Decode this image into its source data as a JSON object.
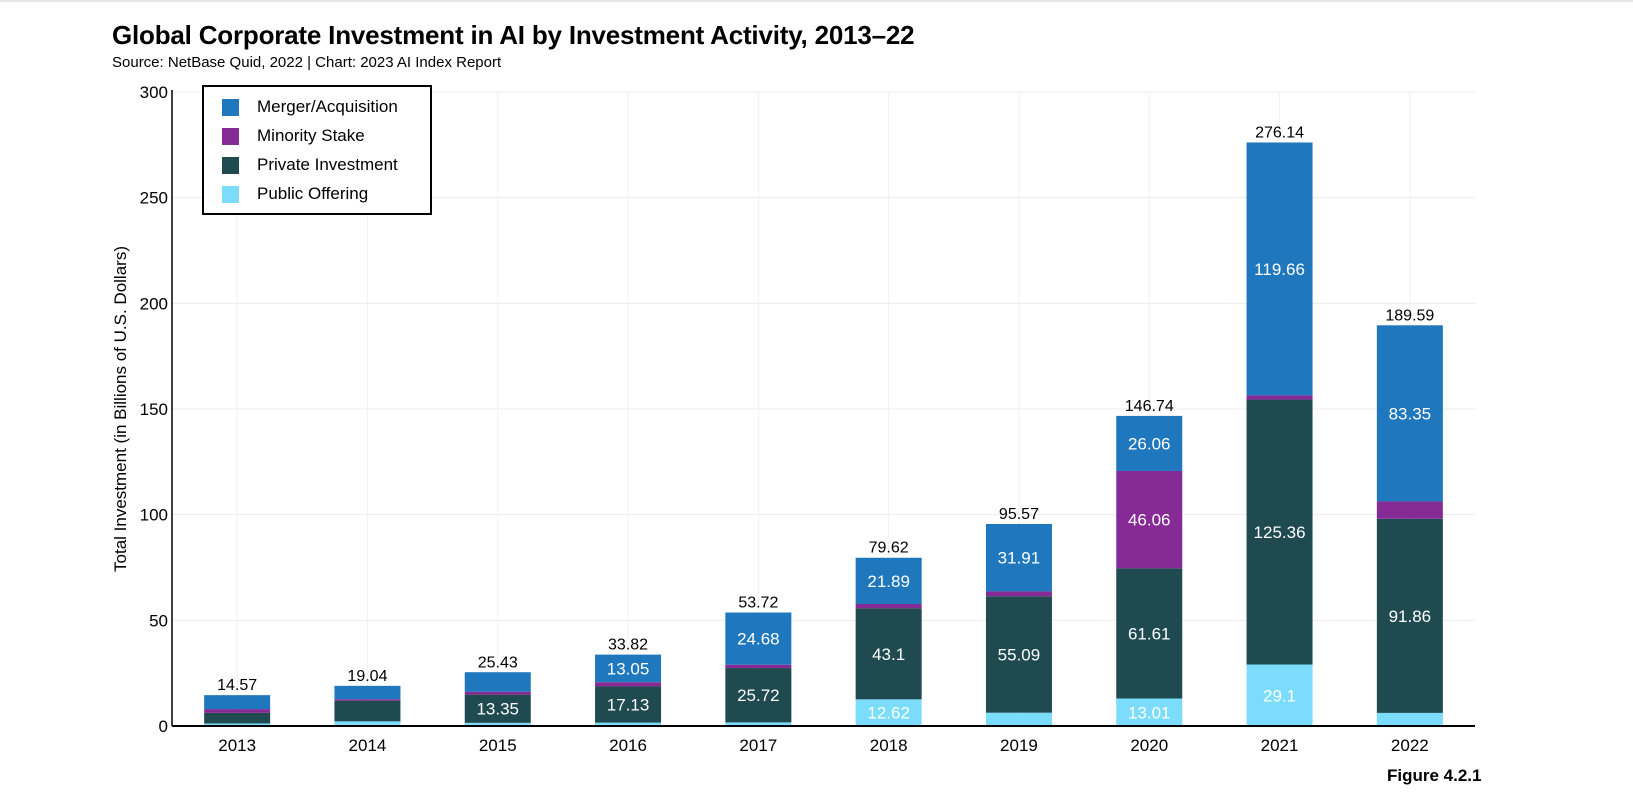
{
  "title": "Global Corporate Investment in AI by Investment Activity, 2013–22",
  "subtitle": "Source: NetBase Quid, 2022 | Chart: 2023 AI Index Report",
  "figure_label": "Figure 4.2.1",
  "colors": {
    "merger": "#1f77be",
    "minority": "#862a96",
    "private": "#1e4a50",
    "public": "#7bdcfc"
  },
  "legend": [
    {
      "label": "Merger/Acquisition",
      "color": "#1f77be"
    },
    {
      "label": "Minority Stake",
      "color": "#862a96"
    },
    {
      "label": "Private Investment",
      "color": "#1e4a50"
    },
    {
      "label": "Public Offering",
      "color": "#7bdcfc"
    }
  ],
  "chart_data": {
    "type": "bar",
    "stacked": true,
    "title": "Global Corporate Investment in AI by Investment Activity, 2013–22",
    "xlabel": "",
    "ylabel": "Total Investment (in Billions of U.S. Dollars)",
    "ylim": [
      0,
      300
    ],
    "yticks": [
      0,
      50,
      100,
      150,
      200,
      250,
      300
    ],
    "grid": true,
    "legend_position": "top-left",
    "categories": [
      "2013",
      "2014",
      "2015",
      "2016",
      "2017",
      "2018",
      "2019",
      "2020",
      "2021",
      "2022"
    ],
    "totals": [
      14.57,
      19.04,
      25.43,
      33.82,
      53.72,
      79.62,
      95.57,
      146.74,
      276.14,
      189.59
    ],
    "series": [
      {
        "name": "Public Offering",
        "color": "#7bdcfc",
        "values": [
          1.2,
          2.2,
          1.5,
          1.6,
          1.7,
          12.62,
          6.3,
          13.01,
          29.1,
          6.2
        ],
        "labels": [
          null,
          null,
          null,
          null,
          null,
          "12.62",
          null,
          "13.01",
          "29.1",
          null
        ]
      },
      {
        "name": "Private Investment",
        "color": "#1e4a50",
        "values": [
          5.0,
          9.8,
          13.35,
          17.13,
          25.72,
          43.1,
          55.09,
          61.61,
          125.36,
          91.86
        ],
        "labels": [
          null,
          null,
          "13.35",
          "17.13",
          "25.72",
          "43.1",
          "55.09",
          "61.61",
          "125.36",
          "91.86"
        ]
      },
      {
        "name": "Minority Stake",
        "color": "#862a96",
        "values": [
          1.8,
          0.7,
          1.4,
          2.0,
          1.6,
          2.0,
          2.3,
          46.06,
          2.0,
          8.2
        ],
        "labels": [
          null,
          null,
          null,
          null,
          null,
          null,
          null,
          "46.06",
          null,
          null
        ]
      },
      {
        "name": "Merger/Acquisition",
        "color": "#1f77be",
        "values": [
          6.6,
          6.3,
          9.2,
          13.05,
          24.68,
          21.89,
          31.91,
          26.06,
          119.66,
          83.35
        ],
        "labels": [
          null,
          null,
          null,
          "13.05",
          "24.68",
          "21.89",
          "31.91",
          "26.06",
          "119.66",
          "83.35"
        ]
      }
    ]
  }
}
